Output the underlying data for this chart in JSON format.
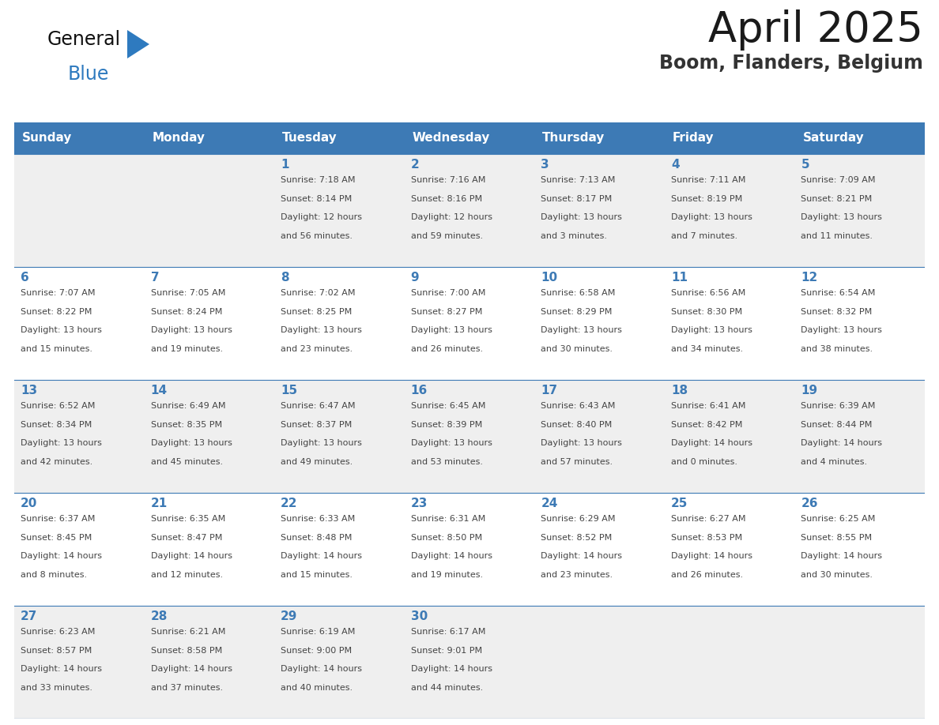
{
  "title": "April 2025",
  "subtitle": "Boom, Flanders, Belgium",
  "header_bg_color": "#3D7AB5",
  "header_text_color": "#FFFFFF",
  "cell_bg_row0": "#EFEFEF",
  "cell_bg_row1": "#FFFFFF",
  "cell_bg_row2": "#EFEFEF",
  "cell_bg_row3": "#FFFFFF",
  "cell_bg_row4": "#EFEFEF",
  "cell_text_color": "#444444",
  "day_num_color": "#3D7AB5",
  "border_color": "#3D7AB5",
  "logo_black": "#111111",
  "logo_blue": "#2E7ABF",
  "days_of_week": [
    "Sunday",
    "Monday",
    "Tuesday",
    "Wednesday",
    "Thursday",
    "Friday",
    "Saturday"
  ],
  "weeks": [
    [
      {
        "day": "",
        "sunrise": "",
        "sunset": "",
        "daylight": ""
      },
      {
        "day": "",
        "sunrise": "",
        "sunset": "",
        "daylight": ""
      },
      {
        "day": "1",
        "sunrise": "Sunrise: 7:18 AM",
        "sunset": "Sunset: 8:14 PM",
        "daylight": "Daylight: 12 hours\nand 56 minutes."
      },
      {
        "day": "2",
        "sunrise": "Sunrise: 7:16 AM",
        "sunset": "Sunset: 8:16 PM",
        "daylight": "Daylight: 12 hours\nand 59 minutes."
      },
      {
        "day": "3",
        "sunrise": "Sunrise: 7:13 AM",
        "sunset": "Sunset: 8:17 PM",
        "daylight": "Daylight: 13 hours\nand 3 minutes."
      },
      {
        "day": "4",
        "sunrise": "Sunrise: 7:11 AM",
        "sunset": "Sunset: 8:19 PM",
        "daylight": "Daylight: 13 hours\nand 7 minutes."
      },
      {
        "day": "5",
        "sunrise": "Sunrise: 7:09 AM",
        "sunset": "Sunset: 8:21 PM",
        "daylight": "Daylight: 13 hours\nand 11 minutes."
      }
    ],
    [
      {
        "day": "6",
        "sunrise": "Sunrise: 7:07 AM",
        "sunset": "Sunset: 8:22 PM",
        "daylight": "Daylight: 13 hours\nand 15 minutes."
      },
      {
        "day": "7",
        "sunrise": "Sunrise: 7:05 AM",
        "sunset": "Sunset: 8:24 PM",
        "daylight": "Daylight: 13 hours\nand 19 minutes."
      },
      {
        "day": "8",
        "sunrise": "Sunrise: 7:02 AM",
        "sunset": "Sunset: 8:25 PM",
        "daylight": "Daylight: 13 hours\nand 23 minutes."
      },
      {
        "day": "9",
        "sunrise": "Sunrise: 7:00 AM",
        "sunset": "Sunset: 8:27 PM",
        "daylight": "Daylight: 13 hours\nand 26 minutes."
      },
      {
        "day": "10",
        "sunrise": "Sunrise: 6:58 AM",
        "sunset": "Sunset: 8:29 PM",
        "daylight": "Daylight: 13 hours\nand 30 minutes."
      },
      {
        "day": "11",
        "sunrise": "Sunrise: 6:56 AM",
        "sunset": "Sunset: 8:30 PM",
        "daylight": "Daylight: 13 hours\nand 34 minutes."
      },
      {
        "day": "12",
        "sunrise": "Sunrise: 6:54 AM",
        "sunset": "Sunset: 8:32 PM",
        "daylight": "Daylight: 13 hours\nand 38 minutes."
      }
    ],
    [
      {
        "day": "13",
        "sunrise": "Sunrise: 6:52 AM",
        "sunset": "Sunset: 8:34 PM",
        "daylight": "Daylight: 13 hours\nand 42 minutes."
      },
      {
        "day": "14",
        "sunrise": "Sunrise: 6:49 AM",
        "sunset": "Sunset: 8:35 PM",
        "daylight": "Daylight: 13 hours\nand 45 minutes."
      },
      {
        "day": "15",
        "sunrise": "Sunrise: 6:47 AM",
        "sunset": "Sunset: 8:37 PM",
        "daylight": "Daylight: 13 hours\nand 49 minutes."
      },
      {
        "day": "16",
        "sunrise": "Sunrise: 6:45 AM",
        "sunset": "Sunset: 8:39 PM",
        "daylight": "Daylight: 13 hours\nand 53 minutes."
      },
      {
        "day": "17",
        "sunrise": "Sunrise: 6:43 AM",
        "sunset": "Sunset: 8:40 PM",
        "daylight": "Daylight: 13 hours\nand 57 minutes."
      },
      {
        "day": "18",
        "sunrise": "Sunrise: 6:41 AM",
        "sunset": "Sunset: 8:42 PM",
        "daylight": "Daylight: 14 hours\nand 0 minutes."
      },
      {
        "day": "19",
        "sunrise": "Sunrise: 6:39 AM",
        "sunset": "Sunset: 8:44 PM",
        "daylight": "Daylight: 14 hours\nand 4 minutes."
      }
    ],
    [
      {
        "day": "20",
        "sunrise": "Sunrise: 6:37 AM",
        "sunset": "Sunset: 8:45 PM",
        "daylight": "Daylight: 14 hours\nand 8 minutes."
      },
      {
        "day": "21",
        "sunrise": "Sunrise: 6:35 AM",
        "sunset": "Sunset: 8:47 PM",
        "daylight": "Daylight: 14 hours\nand 12 minutes."
      },
      {
        "day": "22",
        "sunrise": "Sunrise: 6:33 AM",
        "sunset": "Sunset: 8:48 PM",
        "daylight": "Daylight: 14 hours\nand 15 minutes."
      },
      {
        "day": "23",
        "sunrise": "Sunrise: 6:31 AM",
        "sunset": "Sunset: 8:50 PM",
        "daylight": "Daylight: 14 hours\nand 19 minutes."
      },
      {
        "day": "24",
        "sunrise": "Sunrise: 6:29 AM",
        "sunset": "Sunset: 8:52 PM",
        "daylight": "Daylight: 14 hours\nand 23 minutes."
      },
      {
        "day": "25",
        "sunrise": "Sunrise: 6:27 AM",
        "sunset": "Sunset: 8:53 PM",
        "daylight": "Daylight: 14 hours\nand 26 minutes."
      },
      {
        "day": "26",
        "sunrise": "Sunrise: 6:25 AM",
        "sunset": "Sunset: 8:55 PM",
        "daylight": "Daylight: 14 hours\nand 30 minutes."
      }
    ],
    [
      {
        "day": "27",
        "sunrise": "Sunrise: 6:23 AM",
        "sunset": "Sunset: 8:57 PM",
        "daylight": "Daylight: 14 hours\nand 33 minutes."
      },
      {
        "day": "28",
        "sunrise": "Sunrise: 6:21 AM",
        "sunset": "Sunset: 8:58 PM",
        "daylight": "Daylight: 14 hours\nand 37 minutes."
      },
      {
        "day": "29",
        "sunrise": "Sunrise: 6:19 AM",
        "sunset": "Sunset: 9:00 PM",
        "daylight": "Daylight: 14 hours\nand 40 minutes."
      },
      {
        "day": "30",
        "sunrise": "Sunrise: 6:17 AM",
        "sunset": "Sunset: 9:01 PM",
        "daylight": "Daylight: 14 hours\nand 44 minutes."
      },
      {
        "day": "",
        "sunrise": "",
        "sunset": "",
        "daylight": ""
      },
      {
        "day": "",
        "sunrise": "",
        "sunset": "",
        "daylight": ""
      },
      {
        "day": "",
        "sunrise": "",
        "sunset": "",
        "daylight": ""
      }
    ]
  ]
}
